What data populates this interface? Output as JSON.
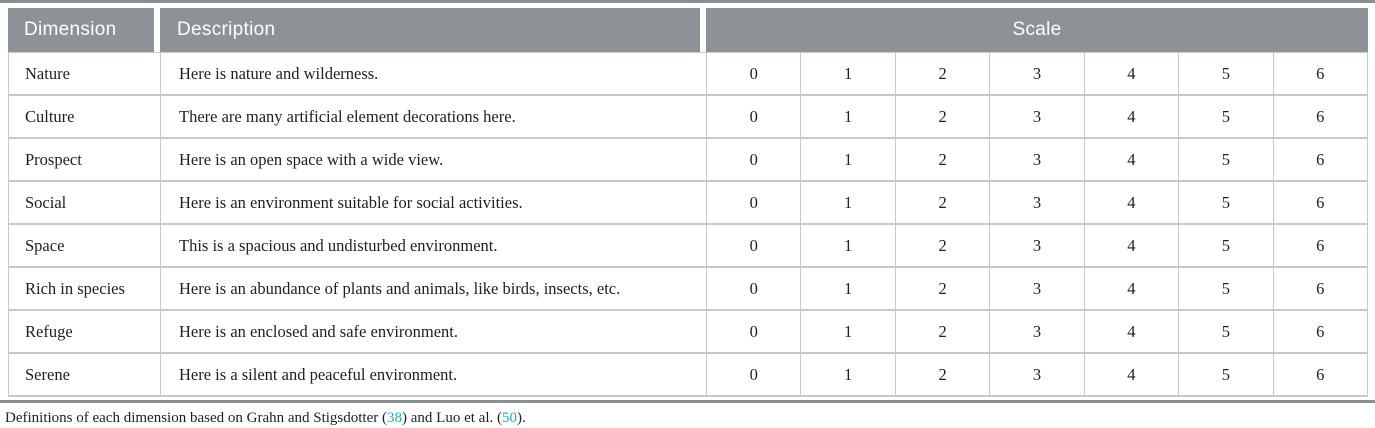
{
  "table": {
    "header": {
      "dimension": "Dimension",
      "description": "Description",
      "scale": "Scale"
    },
    "scale_values": [
      "0",
      "1",
      "2",
      "3",
      "4",
      "5",
      "6"
    ],
    "rows": [
      {
        "dimension": "Nature",
        "description": "Here is nature and wilderness."
      },
      {
        "dimension": "Culture",
        "description": "There are many artificial element decorations here."
      },
      {
        "dimension": "Prospect",
        "description": "Here is an open space with a wide view."
      },
      {
        "dimension": "Social",
        "description": "Here is an environment suitable for social activities."
      },
      {
        "dimension": "Space",
        "description": "This is a spacious and undisturbed environment."
      },
      {
        "dimension": "Rich in species",
        "description": "Here is an abundance of plants and animals, like birds, insects, etc."
      },
      {
        "dimension": "Refuge",
        "description": "Here is an enclosed and safe environment."
      },
      {
        "dimension": "Serene",
        "description": "Here is a silent and peaceful environment."
      }
    ]
  },
  "footnote": {
    "text_before_ref1": "Definitions of each dimension based on Grahn and Stigsdotter (",
    "ref1": "38",
    "text_between": ") and Luo et al. (",
    "ref2": "50",
    "text_after": ")."
  },
  "colors": {
    "header_bg": "#8d9296",
    "header_text": "#ffffff",
    "rule": "#8a9093",
    "cell_border": "#c6c9c8",
    "body_text": "#1f1f1f",
    "citation_link": "#2aa7b5"
  }
}
